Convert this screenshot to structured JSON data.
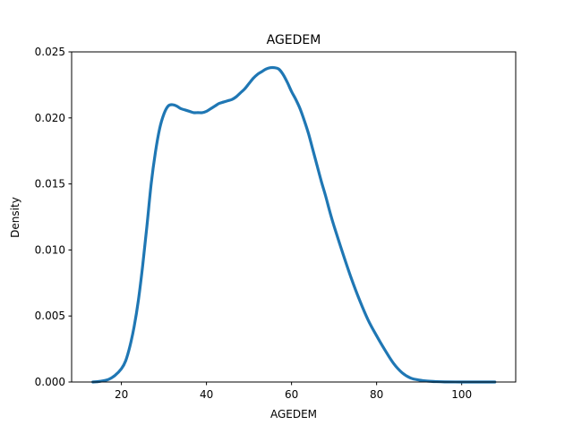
{
  "chart_data": {
    "type": "line",
    "title": "AGEDEM",
    "xlabel": "AGEDEM",
    "ylabel": "Density",
    "xlim": [
      8.3,
      112.7
    ],
    "ylim": [
      0,
      0.025
    ],
    "xticks": [
      20,
      40,
      60,
      80,
      100
    ],
    "yticks": [
      0.0,
      0.005,
      0.01,
      0.015,
      0.02,
      0.025
    ],
    "xtick_labels": [
      "20",
      "40",
      "60",
      "80",
      "100"
    ],
    "ytick_labels": [
      "0.000",
      "0.005",
      "0.010",
      "0.015",
      "0.020",
      "0.025"
    ],
    "grid": false,
    "legend": "none",
    "color": "#1f77b4",
    "series": [
      {
        "x": [
          13.3,
          15,
          17,
          18.5,
          20,
          21,
          22,
          23,
          24,
          25,
          26,
          27,
          28,
          29,
          30,
          31,
          32,
          33,
          34,
          35,
          36,
          37,
          38,
          39,
          40,
          41,
          42,
          43,
          44,
          45,
          46,
          47,
          48,
          49,
          50,
          51,
          52,
          53,
          54,
          55,
          56,
          57,
          58,
          59,
          60,
          61,
          62,
          63,
          64,
          65,
          66,
          67,
          68,
          69,
          70,
          72,
          74,
          76,
          78,
          80,
          82,
          84,
          86,
          88,
          90,
          92,
          94,
          96,
          100,
          107.8
        ],
        "y": [
          0.0,
          5e-05,
          0.0002,
          0.0005,
          0.001,
          0.0016,
          0.0027,
          0.0042,
          0.0062,
          0.0088,
          0.0118,
          0.015,
          0.0174,
          0.0192,
          0.0203,
          0.0209,
          0.021,
          0.0209,
          0.0207,
          0.0206,
          0.0205,
          0.0204,
          0.0204,
          0.0204,
          0.0205,
          0.0207,
          0.0209,
          0.0211,
          0.0212,
          0.0213,
          0.0214,
          0.0216,
          0.0219,
          0.0222,
          0.0226,
          0.023,
          0.0233,
          0.0235,
          0.0237,
          0.0238,
          0.0238,
          0.0237,
          0.0233,
          0.0227,
          0.022,
          0.0214,
          0.0207,
          0.0198,
          0.0188,
          0.0176,
          0.0164,
          0.0152,
          0.0141,
          0.0129,
          0.0118,
          0.0098,
          0.0079,
          0.0062,
          0.0047,
          0.0035,
          0.0024,
          0.0014,
          0.0007,
          0.0003,
          0.00015,
          7e-05,
          3e-05,
          1e-05,
          0.0,
          0.0
        ]
      }
    ]
  }
}
